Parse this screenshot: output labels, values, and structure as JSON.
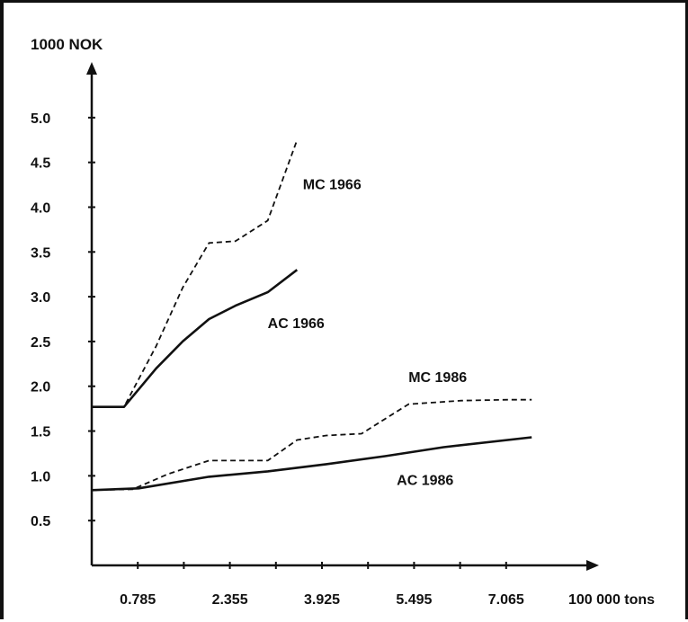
{
  "chart_data": {
    "type": "line",
    "ylabel": "1000 NOK",
    "xlabel": "100 000 tons",
    "xlim": [
      0,
      7.85
    ],
    "ylim": [
      0,
      5.4
    ],
    "x_ticks": [
      0.785,
      2.355,
      3.925,
      5.495,
      7.065
    ],
    "x_tick_labels": [
      "0.785",
      "2.355",
      "3.925",
      "5.495",
      "7.065"
    ],
    "y_ticks": [
      0.5,
      1.0,
      1.5,
      2.0,
      2.5,
      3.0,
      3.5,
      4.0,
      4.5,
      5.0
    ],
    "y_tick_labels": [
      "0.5",
      "1.0",
      "1.5",
      "2.0",
      "2.5",
      "3.0",
      "3.5",
      "4.0",
      "4.5",
      "5.0"
    ],
    "grid": false,
    "series": [
      {
        "name": "MC 1966",
        "style": "dashed",
        "color": "#111111",
        "points": [
          [
            0,
            1.77
          ],
          [
            0.55,
            1.77
          ],
          [
            1.1,
            2.45
          ],
          [
            1.55,
            3.1
          ],
          [
            2.0,
            3.6
          ],
          [
            2.45,
            3.62
          ],
          [
            3.0,
            3.85
          ],
          [
            3.5,
            4.75
          ]
        ]
      },
      {
        "name": "AC 1966",
        "style": "solid",
        "color": "#111111",
        "points": [
          [
            0,
            1.77
          ],
          [
            0.55,
            1.77
          ],
          [
            1.1,
            2.2
          ],
          [
            1.55,
            2.5
          ],
          [
            2.0,
            2.75
          ],
          [
            2.45,
            2.9
          ],
          [
            3.0,
            3.05
          ],
          [
            3.5,
            3.3
          ]
        ]
      },
      {
        "name": "MC 1986",
        "style": "dashed",
        "color": "#111111",
        "points": [
          [
            0,
            0.84
          ],
          [
            0.7,
            0.85
          ],
          [
            1.3,
            1.02
          ],
          [
            2.0,
            1.17
          ],
          [
            3.0,
            1.17
          ],
          [
            3.5,
            1.4
          ],
          [
            4.0,
            1.45
          ],
          [
            4.6,
            1.47
          ],
          [
            5.4,
            1.8
          ],
          [
            6.3,
            1.84
          ],
          [
            7.1,
            1.85
          ],
          [
            7.5,
            1.85
          ]
        ]
      },
      {
        "name": "AC 1986",
        "style": "solid",
        "color": "#111111",
        "points": [
          [
            0,
            0.84
          ],
          [
            0.8,
            0.86
          ],
          [
            2.0,
            0.99
          ],
          [
            3.0,
            1.05
          ],
          [
            4.0,
            1.13
          ],
          [
            5.0,
            1.22
          ],
          [
            6.0,
            1.32
          ],
          [
            7.5,
            1.43
          ]
        ]
      }
    ],
    "series_label_positions": [
      {
        "name": "MC 1966",
        "x": 3.6,
        "y": 4.2
      },
      {
        "name": "AC 1966",
        "x": 3.0,
        "y": 2.65
      },
      {
        "name": "MC 1986",
        "x": 5.4,
        "y": 2.05
      },
      {
        "name": "AC 1986",
        "x": 5.2,
        "y": 0.9
      }
    ]
  }
}
